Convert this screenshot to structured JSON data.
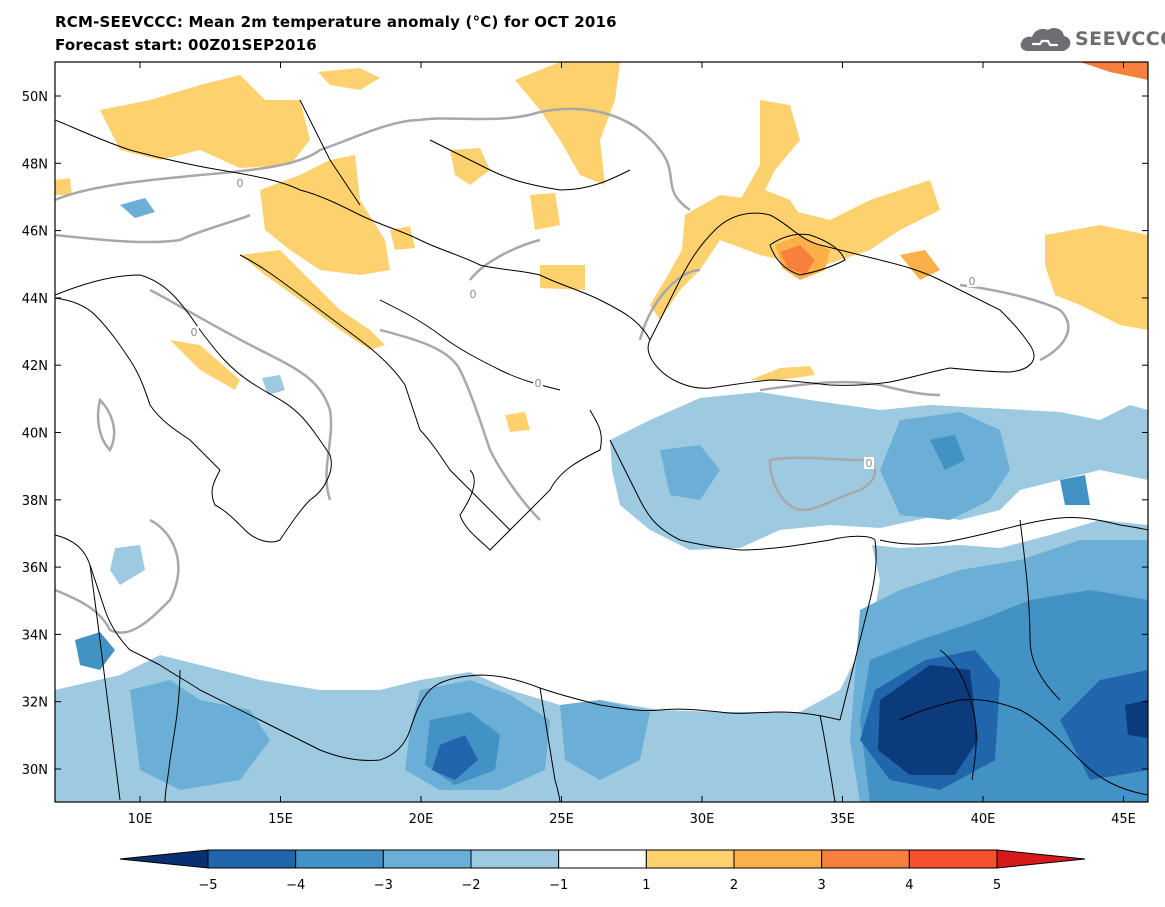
{
  "header": {
    "title_line1": "RCM-SEEVCCC: Mean 2m temperature anomaly (°C) for OCT 2016",
    "title_line2": "Forecast start: 00Z01SEP2016"
  },
  "logo": {
    "text": "SEEVCCC",
    "icon": "cloud-icon"
  },
  "map": {
    "lat_labels": [
      "50N",
      "48N",
      "46N",
      "44N",
      "42N",
      "40N",
      "38N",
      "36N",
      "34N",
      "32N",
      "30N"
    ],
    "lon_labels": [
      "10E",
      "15E",
      "20E",
      "25E",
      "30E",
      "35E",
      "40E",
      "45E"
    ],
    "contour_label": "0",
    "colors": {
      "land_line": "#000000",
      "contour": "#a8a8a8",
      "warm1": "#fed16f",
      "warm2": "#fbb04a",
      "warm3": "#f7813c",
      "cool1": "#9ecae1",
      "cool2": "#6baed6",
      "cool3": "#4292c6",
      "cool4": "#2166ac",
      "cool5": "#0b3b7a"
    }
  },
  "colorbar": {
    "tick_labels": [
      "−5",
      "−4",
      "−3",
      "−2",
      "−1",
      "1",
      "2",
      "3",
      "4",
      "5"
    ],
    "colors": [
      "#083070",
      "#2166ac",
      "#4292c6",
      "#6baed6",
      "#9ecae1",
      "#ffffff",
      "#fed16f",
      "#fbb04a",
      "#f7813c",
      "#f4512c",
      "#d7191c"
    ]
  }
}
